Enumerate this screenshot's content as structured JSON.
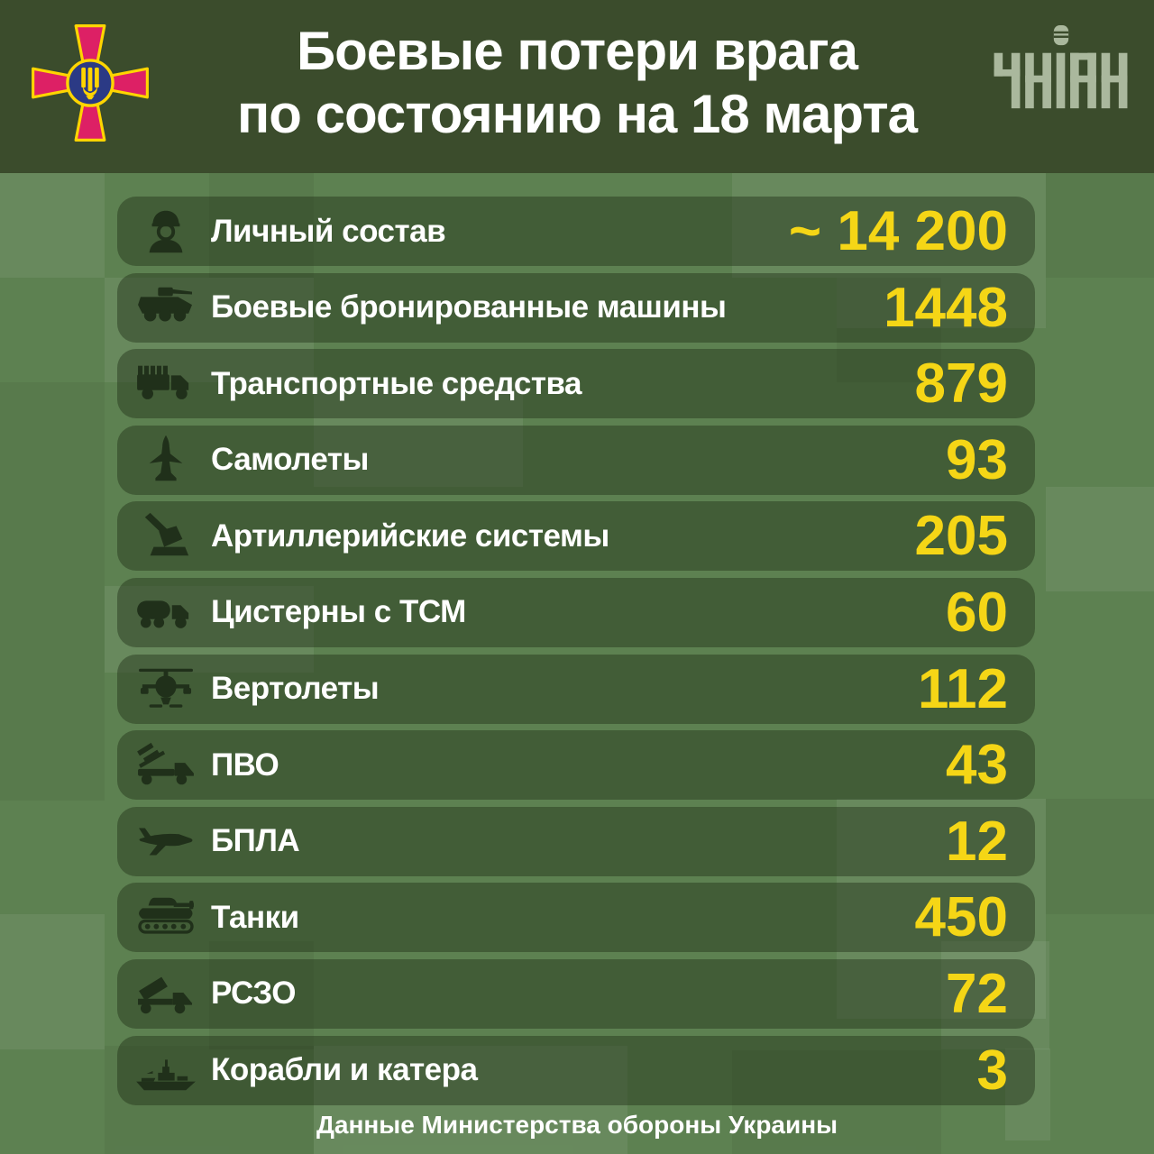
{
  "header": {
    "title_line1": "Боевые потери врага",
    "title_line2": "по состоянию на 18 марта",
    "agency_logo_text": "УНІАН"
  },
  "rows": [
    {
      "icon": "soldier-icon",
      "label": "Личный состав",
      "value": "~ 14 200"
    },
    {
      "icon": "apc-icon",
      "label": "Боевые бронированные машины",
      "value": "1448"
    },
    {
      "icon": "truck-icon",
      "label": "Транспортные средства",
      "value": "879"
    },
    {
      "icon": "jet-icon",
      "label": "Самолеты",
      "value": "93"
    },
    {
      "icon": "artillery-icon",
      "label": "Артиллерийские системы",
      "value": "205"
    },
    {
      "icon": "fuel-tanker-icon",
      "label": "Цистерны с ТСМ",
      "value": "60"
    },
    {
      "icon": "helicopter-icon",
      "label": "Вертолеты",
      "value": "112"
    },
    {
      "icon": "air-defense-icon",
      "label": "ПВО",
      "value": "43"
    },
    {
      "icon": "uav-icon",
      "label": "БПЛА",
      "value": "12"
    },
    {
      "icon": "tank-icon",
      "label": "Танки",
      "value": "450"
    },
    {
      "icon": "mlrs-icon",
      "label": "РСЗО",
      "value": "72"
    },
    {
      "icon": "ship-icon",
      "label": "Корабли и катера",
      "value": "3"
    }
  ],
  "footer": {
    "source": "Данные Министерства обороны Украины"
  },
  "chart_data": {
    "type": "table",
    "title": "Боевые потери врага по состоянию на 18 марта",
    "categories": [
      "Личный состав",
      "Боевые бронированные машины",
      "Транспортные средства",
      "Самолеты",
      "Артиллерийские системы",
      "Цистерны с ТСМ",
      "Вертолеты",
      "ПВО",
      "БПЛА",
      "Танки",
      "РСЗО",
      "Корабли и катера"
    ],
    "values": [
      14200,
      1448,
      879,
      93,
      205,
      60,
      112,
      43,
      12,
      450,
      72,
      3
    ],
    "value_labels": [
      "~ 14 200",
      "1448",
      "879",
      "93",
      "205",
      "60",
      "112",
      "43",
      "12",
      "450",
      "72",
      "3"
    ],
    "source": "Данные Министерства обороны Украины"
  },
  "colors": {
    "header_bg": "#3b4c2c",
    "background_green": "#5d8151",
    "row_overlay": "rgba(28,44,18,0.42)",
    "value_yellow": "#f5d616",
    "text_white": "#ffffff",
    "icon_dark_green": "#20301a",
    "emblem_crimson": "#dd2065",
    "emblem_yellow": "#ffd500",
    "emblem_blue": "#2b3a85",
    "logo_sage": "#aab89d"
  }
}
